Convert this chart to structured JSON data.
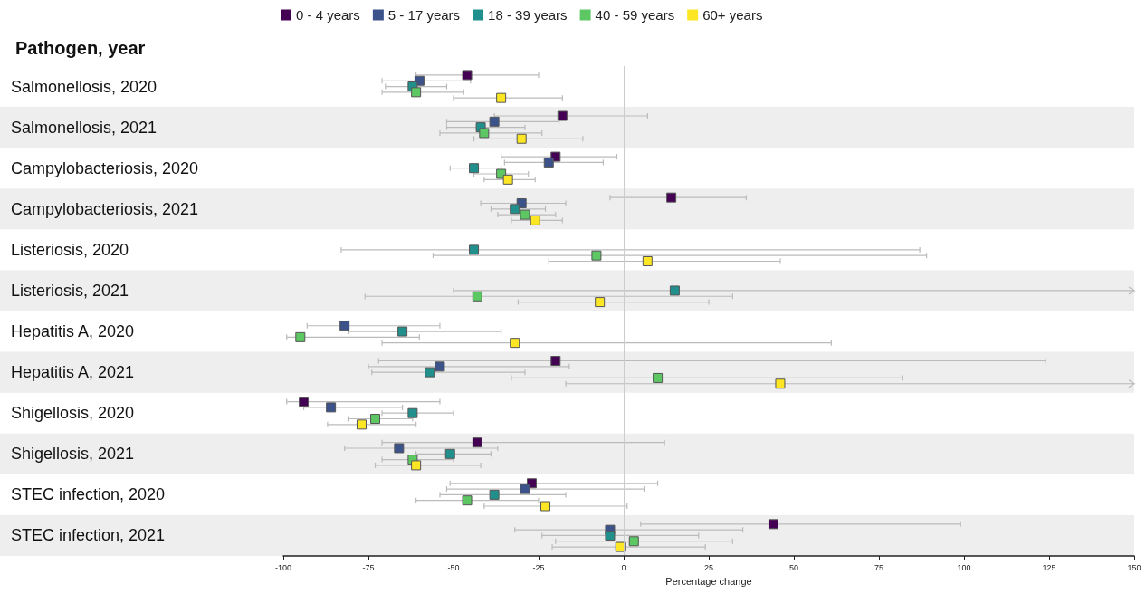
{
  "chart_data": {
    "type": "scatter",
    "orientation": "horizontal",
    "ylabel": "Pathogen, year",
    "xlabel": "Percentage change",
    "categories": [
      "Salmonellosis, 2020",
      "Salmonellosis, 2021",
      "Campylobacteriosis, 2020",
      "Campylobacteriosis, 2021",
      "Listeriosis, 2020",
      "Listeriosis, 2021",
      "Hepatitis A, 2020",
      "Hepatitis A, 2021",
      "Shigellosis, 2020",
      "Shigellosis, 2021",
      "STEC infection, 2020",
      "STEC infection, 2021"
    ],
    "series": [
      {
        "name": "0 - 4 years",
        "color": "#440154",
        "values": [
          -46,
          -18,
          -20,
          14,
          null,
          null,
          null,
          -20,
          -94,
          -43,
          -27,
          44
        ],
        "errors": [
          [
            -61,
            -25
          ],
          [
            -38,
            7
          ],
          [
            -36,
            -2
          ],
          [
            -4,
            36
          ],
          null,
          null,
          null,
          [
            -72,
            124
          ],
          [
            -99,
            -54
          ],
          [
            -71,
            12
          ],
          [
            -51,
            10
          ],
          [
            5,
            99
          ]
        ]
      },
      {
        "name": "5 - 17 years",
        "color": "#3b528b",
        "values": [
          -60,
          -38,
          -22,
          -30,
          null,
          null,
          -82,
          -54,
          -86,
          -66,
          -29,
          -4
        ],
        "errors": [
          [
            -71,
            -45
          ],
          [
            -52,
            -19
          ],
          [
            -35,
            -6
          ],
          [
            -42,
            -17
          ],
          null,
          null,
          [
            -93,
            -54
          ],
          [
            -75,
            -16
          ],
          [
            -94,
            -65
          ],
          [
            -82,
            -37
          ],
          [
            -52,
            6
          ],
          [
            -32,
            35
          ]
        ]
      },
      {
        "name": "18 - 39 years",
        "color": "#21908c",
        "values": [
          -62,
          -42,
          -44,
          -32,
          -44,
          15,
          -65,
          -57,
          -62,
          -51,
          -38,
          -4
        ],
        "errors": [
          [
            -70,
            -52
          ],
          [
            -52,
            -29
          ],
          [
            -51,
            -36
          ],
          [
            -39,
            -23
          ],
          [
            -83,
            87
          ],
          [
            -50,
            150
          ],
          [
            -81,
            -36
          ],
          [
            -74,
            -29
          ],
          [
            -71,
            -50
          ],
          [
            -61,
            -39
          ],
          [
            -54,
            -17
          ],
          [
            -24,
            22
          ]
        ]
      },
      {
        "name": "40 - 59 years",
        "color": "#5dc863",
        "values": [
          -61,
          -41,
          -36,
          -29,
          -8,
          -43,
          -95,
          10,
          -73,
          -62,
          -46,
          3
        ],
        "errors": [
          [
            -71,
            -47
          ],
          [
            -54,
            -24
          ],
          [
            -44,
            -28
          ],
          [
            -37,
            -20
          ],
          [
            -56,
            89
          ],
          [
            -76,
            32
          ],
          [
            -99,
            -60
          ],
          [
            -33,
            82
          ],
          [
            -81,
            -62
          ],
          [
            -71,
            -50
          ],
          [
            -61,
            -25
          ],
          [
            -20,
            32
          ]
        ]
      },
      {
        "name": "60+ years",
        "color": "#fde725",
        "values": [
          -36,
          -30,
          -34,
          -26,
          7,
          -7,
          -32,
          46,
          -77,
          -61,
          -23,
          -1
        ],
        "errors": [
          [
            -50,
            -18
          ],
          [
            -44,
            -12
          ],
          [
            -41,
            -26
          ],
          [
            -33,
            -18
          ],
          [
            -22,
            46
          ],
          [
            -31,
            25
          ],
          [
            -71,
            61
          ],
          [
            -17,
            150
          ],
          [
            -87,
            -61
          ],
          [
            -73,
            -42
          ],
          [
            -41,
            1
          ],
          [
            -21,
            24
          ]
        ]
      }
    ],
    "xlim": [
      -100,
      150
    ],
    "xticks": [
      -100,
      -75,
      -50,
      -25,
      0,
      25,
      50,
      75,
      100,
      125,
      150
    ],
    "ref_lines": [
      {
        "axis": "x",
        "value": 0,
        "color": "#cccccc"
      }
    ],
    "bands": [
      {
        "axis": "y",
        "from": "Salmonellosis, 2021",
        "to": "Salmonellosis, 2021",
        "color": "#eeeeee"
      },
      {
        "axis": "y",
        "from": "Campylobacteriosis, 2021",
        "to": "Campylobacteriosis, 2021",
        "color": "#eeeeee"
      },
      {
        "axis": "y",
        "from": "Listeriosis, 2021",
        "to": "Listeriosis, 2021",
        "color": "#eeeeee"
      },
      {
        "axis": "y",
        "from": "Hepatitis A, 2021",
        "to": "Hepatitis A, 2021",
        "color": "#eeeeee"
      },
      {
        "axis": "y",
        "from": "Shigellosis, 2021",
        "to": "Shigellosis, 2021",
        "color": "#eeeeee"
      },
      {
        "axis": "y",
        "from": "STEC infection, 2021",
        "to": "STEC infection, 2021",
        "color": "#eeeeee"
      }
    ],
    "marker": "square",
    "legend": "top",
    "grid": false
  }
}
